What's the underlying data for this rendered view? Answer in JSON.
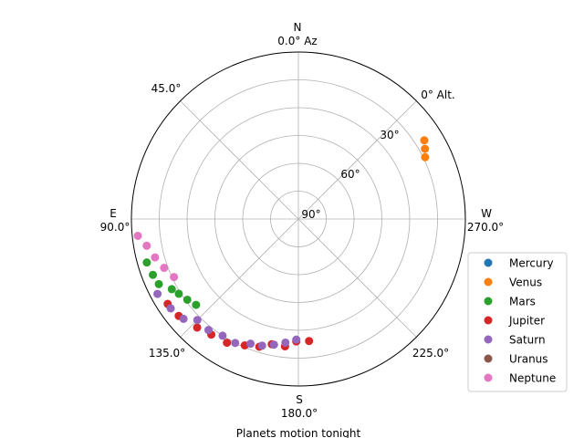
{
  "chart_data": {
    "type": "scatter",
    "projection": "polar",
    "title": "",
    "xlabel": "Planets motion tonight",
    "ylabel": "",
    "azimuth_zero": "N",
    "azimuth_direction": "counterclockwise",
    "radial_axis": "altitude",
    "radial_range": [
      90,
      0
    ],
    "grid": true,
    "legend_position": "lower-right",
    "compass": {
      "north": "N",
      "east": "E",
      "south": "S",
      "west": "W"
    },
    "azimuth_ticks": [
      {
        "az": 0,
        "label": "0.0° Az"
      },
      {
        "az": 45,
        "label": "45.0°"
      },
      {
        "az": 90,
        "label": "90.0°"
      },
      {
        "az": 135,
        "label": "135.0°"
      },
      {
        "az": 180,
        "label": "180.0°"
      },
      {
        "az": 225,
        "label": "225.0°"
      },
      {
        "az": 270,
        "label": "270.0°"
      }
    ],
    "altitude_ticks": [
      {
        "alt": 0,
        "label": "0° Alt."
      },
      {
        "alt": 30,
        "label": "30°"
      },
      {
        "alt": 60,
        "label": "60°"
      },
      {
        "alt": 90,
        "label": "90°"
      }
    ],
    "series": [
      {
        "name": "Mercury",
        "color": "#1f77b4",
        "points": []
      },
      {
        "name": "Venus",
        "color": "#ff7f0e",
        "points": [
          {
            "az": 302,
            "alt": 10
          },
          {
            "az": 299,
            "alt": 12
          },
          {
            "az": 296,
            "alt": 14
          }
        ]
      },
      {
        "name": "Mars",
        "color": "#2ca02c",
        "points": [
          {
            "az": 106,
            "alt": 5
          },
          {
            "az": 111,
            "alt": 6
          },
          {
            "az": 115,
            "alt": 7
          },
          {
            "az": 119,
            "alt": 12
          },
          {
            "az": 122,
            "alt": 14
          },
          {
            "az": 126,
            "alt": 16
          },
          {
            "az": 130,
            "alt": 18
          }
        ]
      },
      {
        "name": "Jupiter",
        "color": "#d62728",
        "points": [
          {
            "az": 123,
            "alt": 6
          },
          {
            "az": 129,
            "alt": 7
          },
          {
            "az": 137,
            "alt": 10
          },
          {
            "az": 143,
            "alt": 12
          },
          {
            "az": 150,
            "alt": 13
          },
          {
            "az": 157,
            "alt": 16
          },
          {
            "az": 163,
            "alt": 18
          },
          {
            "az": 168,
            "alt": 21
          },
          {
            "az": 174,
            "alt": 21
          },
          {
            "az": 179,
            "alt": 24
          },
          {
            "az": 185,
            "alt": 24
          }
        ]
      },
      {
        "name": "Saturn",
        "color": "#9467bd",
        "points": [
          {
            "az": 118,
            "alt": 4
          },
          {
            "az": 125,
            "alt": 6
          },
          {
            "az": 131,
            "alt": 8
          },
          {
            "az": 135,
            "alt": 13
          },
          {
            "az": 141,
            "alt": 13
          },
          {
            "az": 147,
            "alt": 15
          },
          {
            "az": 153,
            "alt": 15
          },
          {
            "az": 159,
            "alt": 18
          },
          {
            "az": 164,
            "alt": 19
          },
          {
            "az": 169,
            "alt": 21
          },
          {
            "az": 174,
            "alt": 23
          },
          {
            "az": 179,
            "alt": 25
          }
        ]
      },
      {
        "name": "Uranus",
        "color": "#8c564b",
        "points": []
      },
      {
        "name": "Neptune",
        "color": "#e377c2",
        "points": [
          {
            "az": 96,
            "alt": 3
          },
          {
            "az": 100,
            "alt": 7
          },
          {
            "az": 105,
            "alt": 10
          },
          {
            "az": 110,
            "alt": 13
          },
          {
            "az": 115,
            "alt": 16
          }
        ]
      }
    ]
  }
}
